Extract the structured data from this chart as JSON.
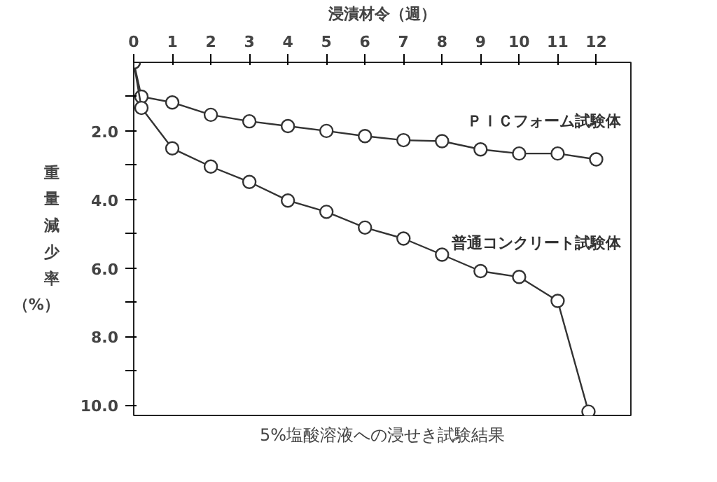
{
  "chart_data": {
    "type": "line",
    "title": "5%塩酸溶液への浸せき試験結果",
    "xlabel": "浸漬材令（週）",
    "ylabel": "重量減少率（%）",
    "xlim": [
      0,
      12.9
    ],
    "ylim": [
      10.3,
      0
    ],
    "xticks": [
      0,
      1,
      2,
      3,
      4,
      5,
      6,
      7,
      8,
      9,
      10,
      11,
      12
    ],
    "yticks": [
      {
        "value": 1,
        "label": null
      },
      {
        "value": 2,
        "label": "2.0"
      },
      {
        "value": 3,
        "label": null
      },
      {
        "value": 4,
        "label": "4.0"
      },
      {
        "value": 5,
        "label": null
      },
      {
        "value": 6,
        "label": "6.0"
      },
      {
        "value": 7,
        "label": null
      },
      {
        "value": 8,
        "label": "8.0"
      },
      {
        "value": 9,
        "label": null
      },
      {
        "value": 10,
        "label": "10.0"
      }
    ],
    "marker": "circle",
    "grid": false,
    "series": [
      {
        "name": "ＰＩＣフォーム試験体",
        "color": "#333333",
        "x": [
          0,
          0.2,
          1,
          2,
          3,
          4,
          5,
          6,
          7,
          8,
          9,
          10,
          11,
          12
        ],
        "values": [
          0,
          1.0,
          1.17,
          1.53,
          1.72,
          1.86,
          2.0,
          2.15,
          2.27,
          2.3,
          2.54,
          2.66,
          2.66,
          2.83
        ]
      },
      {
        "name": "普通コンクリート試験体",
        "color": "#333333",
        "x": [
          0,
          0.2,
          1,
          2,
          3,
          4,
          5,
          6,
          7,
          8,
          9,
          10,
          11,
          11.8
        ],
        "values": [
          0,
          1.33,
          2.51,
          3.04,
          3.49,
          4.03,
          4.36,
          4.82,
          5.14,
          5.61,
          6.09,
          6.26,
          6.96,
          10.19
        ]
      }
    ]
  }
}
